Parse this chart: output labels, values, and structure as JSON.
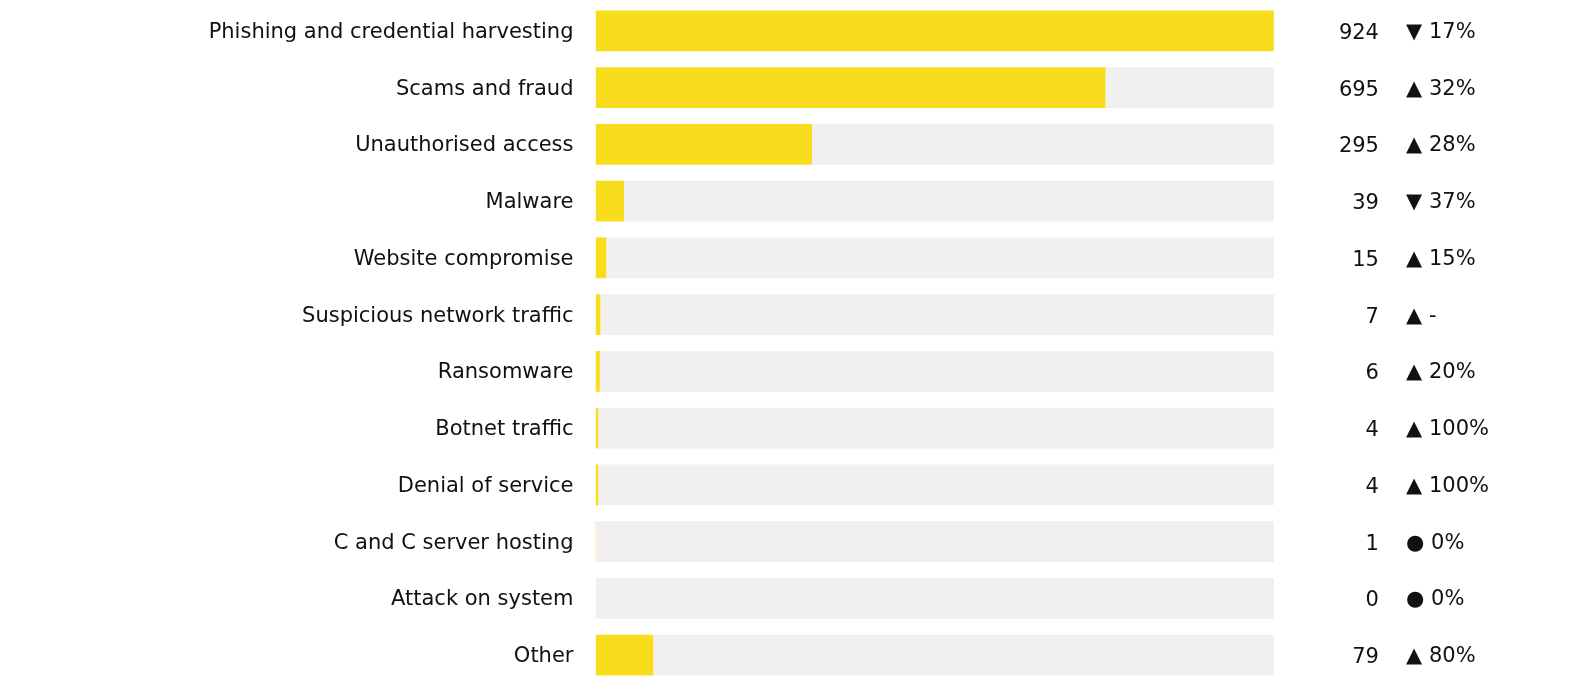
{
  "chart_data": {
    "type": "bar",
    "orientation": "horizontal",
    "categories": [
      "Phishing and credential harvesting",
      "Scams and fraud",
      "Unauthorised access",
      "Malware",
      "Website compromise",
      "Suspicious network traffic",
      "Ransomware",
      "Botnet traffic",
      "Denial of service",
      "C and C server hosting",
      "Attack on system",
      "Other"
    ],
    "series": [
      {
        "color": "#f8dd1c",
        "values": [
          924,
          695,
          295,
          39,
          15,
          7,
          6,
          4,
          4,
          1,
          0,
          79
        ],
        "value_labels": [
          "924",
          "695",
          "295",
          "39",
          "15",
          "7",
          "6",
          "4",
          "4",
          "1",
          "0",
          "79"
        ]
      },
      {
        "color": "#f1f0ee",
        "values": [
          0,
          229,
          629,
          885,
          909,
          917,
          918,
          920,
          920,
          923,
          924,
          845
        ]
      }
    ],
    "stacked": true,
    "annotations": [
      "▼ 17%",
      "▲ 32%",
      "▲ 28%",
      "▼ 37%",
      "▲ 15%",
      "▲ -",
      "▲ 20%",
      "▲ 100%",
      "▲ 100%",
      "● 0%",
      "● 0%",
      "▲ 80%"
    ],
    "grid": false
  }
}
